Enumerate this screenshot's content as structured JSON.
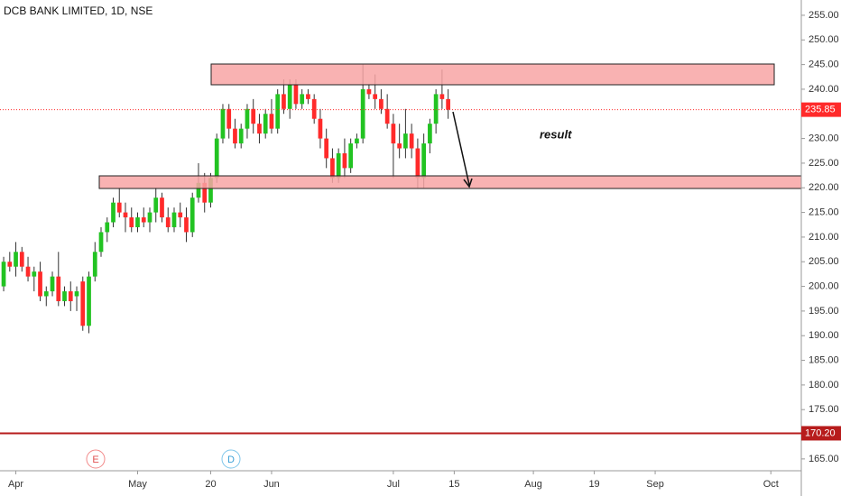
{
  "chart_data": {
    "type": "candlestick",
    "title": "DCB BANK LIMITED, 1D, NSE",
    "x": [
      0,
      1,
      2,
      3,
      4,
      5,
      6,
      7,
      8,
      9,
      10,
      11,
      12,
      13,
      14,
      15,
      16,
      17,
      18,
      19,
      20,
      21,
      22,
      23,
      24,
      25,
      26,
      27,
      28,
      29,
      30,
      31,
      32,
      33,
      34,
      35,
      36,
      37,
      38,
      39,
      40,
      41,
      42,
      43,
      44,
      45,
      46,
      47,
      48,
      49,
      50,
      51,
      52,
      53,
      54,
      55,
      56,
      57,
      58,
      59,
      60,
      61,
      62,
      63,
      64,
      65,
      66,
      67,
      68,
      69,
      70,
      71,
      72,
      73
    ],
    "open": [
      200,
      205,
      204,
      207,
      204,
      202,
      203,
      198,
      199,
      202,
      197,
      199,
      198,
      201,
      192,
      202,
      207,
      211,
      213,
      217,
      215,
      214,
      212,
      214,
      213,
      215,
      218,
      214,
      212,
      215,
      214,
      211,
      218,
      221,
      217,
      222,
      230,
      236,
      232,
      229,
      232,
      236,
      233,
      231,
      235,
      232,
      239,
      236,
      241,
      237,
      239,
      238,
      234,
      230,
      226,
      222,
      227,
      224,
      229,
      230,
      240,
      239,
      238,
      236,
      233,
      229,
      228,
      231,
      228,
      222,
      229,
      233,
      239,
      238
    ],
    "high": [
      206,
      207,
      209,
      208,
      206,
      204,
      205,
      200,
      203,
      207,
      200,
      201,
      200,
      202,
      203,
      209,
      212,
      214,
      218,
      220,
      217,
      216,
      215,
      216,
      216,
      220,
      219,
      216,
      216,
      217,
      216,
      219,
      225,
      223,
      223,
      231,
      237,
      237,
      234,
      233,
      237,
      238,
      235,
      236,
      238,
      240,
      242,
      242,
      242,
      240,
      240,
      239,
      236,
      232,
      228,
      228,
      230,
      230,
      231,
      245,
      241,
      243,
      240,
      239,
      235,
      233,
      236,
      233,
      230,
      231,
      234,
      240,
      244,
      240
    ],
    "low": [
      199,
      203,
      202,
      203,
      201,
      199,
      197,
      196,
      198,
      196,
      196,
      195,
      195,
      191,
      190.5,
      201,
      206,
      209,
      212,
      214,
      211,
      211,
      211,
      212,
      211,
      213,
      213,
      211,
      211,
      212,
      209,
      210,
      217,
      215,
      216,
      221,
      229,
      230,
      228,
      228,
      230,
      231,
      229,
      230,
      231,
      231,
      235,
      234,
      236,
      236,
      237,
      233,
      228,
      224,
      221,
      221,
      222,
      223,
      228,
      229,
      238,
      236,
      235,
      232,
      222,
      226,
      226,
      226,
      220,
      220,
      227,
      231,
      236,
      234
    ],
    "close": [
      205,
      204,
      207,
      204,
      202,
      203,
      198,
      199,
      202,
      197,
      199,
      197,
      199,
      192,
      202,
      207,
      211,
      213,
      217,
      215,
      214,
      212,
      214,
      213,
      215,
      218,
      214,
      212,
      215,
      214,
      211,
      218,
      221,
      217,
      222,
      230,
      236,
      232,
      229,
      232,
      236,
      233,
      231,
      235,
      232,
      239,
      236,
      241,
      237,
      239,
      238,
      234,
      230,
      226,
      222,
      227,
      224,
      229,
      230,
      240,
      239,
      238,
      236,
      233,
      229,
      228,
      231,
      228,
      222,
      229,
      233,
      239,
      238,
      235.85
    ],
    "up_color": "#22c322",
    "down_color": "#ff2a2a",
    "xlim": [
      -0.6,
      131
    ],
    "xticks": [
      {
        "value": 2,
        "label": "Apr"
      },
      {
        "value": 22,
        "label": "May"
      },
      {
        "value": 34,
        "label": "20"
      },
      {
        "value": 44,
        "label": "Jun"
      },
      {
        "value": 64,
        "label": "Jul"
      },
      {
        "value": 74,
        "label": "15"
      },
      {
        "value": 87,
        "label": "Aug"
      },
      {
        "value": 97,
        "label": "19"
      },
      {
        "value": 107,
        "label": "Sep"
      },
      {
        "value": 126,
        "label": "Oct"
      }
    ],
    "ylim": [
      162.6,
      258.1
    ],
    "yticks": [
      {
        "value": 165,
        "label": "165.00"
      },
      {
        "value": 170,
        "label": "170.00"
      },
      {
        "value": 175,
        "label": "175.00"
      },
      {
        "value": 180,
        "label": "180.00"
      },
      {
        "value": 185,
        "label": "185.00"
      },
      {
        "value": 190,
        "label": "190.00"
      },
      {
        "value": 195,
        "label": "195.00"
      },
      {
        "value": 200,
        "label": "200.00"
      },
      {
        "value": 205,
        "label": "205.00"
      },
      {
        "value": 210,
        "label": "210.00"
      },
      {
        "value": 215,
        "label": "215.00"
      },
      {
        "value": 220,
        "label": "220.00"
      },
      {
        "value": 225,
        "label": "225.00"
      },
      {
        "value": 230,
        "label": "230.00"
      },
      {
        "value": 235,
        "label": "235.00"
      },
      {
        "value": 240,
        "label": "240.00"
      },
      {
        "value": 245,
        "label": "245.00"
      },
      {
        "value": 250,
        "label": "250.00"
      },
      {
        "value": 255,
        "label": "255.00"
      }
    ],
    "last_price": 235.85,
    "level_line": {
      "value": 170.2,
      "label": "170.20"
    },
    "annotation": "result",
    "events": [
      "E",
      "D"
    ]
  }
}
